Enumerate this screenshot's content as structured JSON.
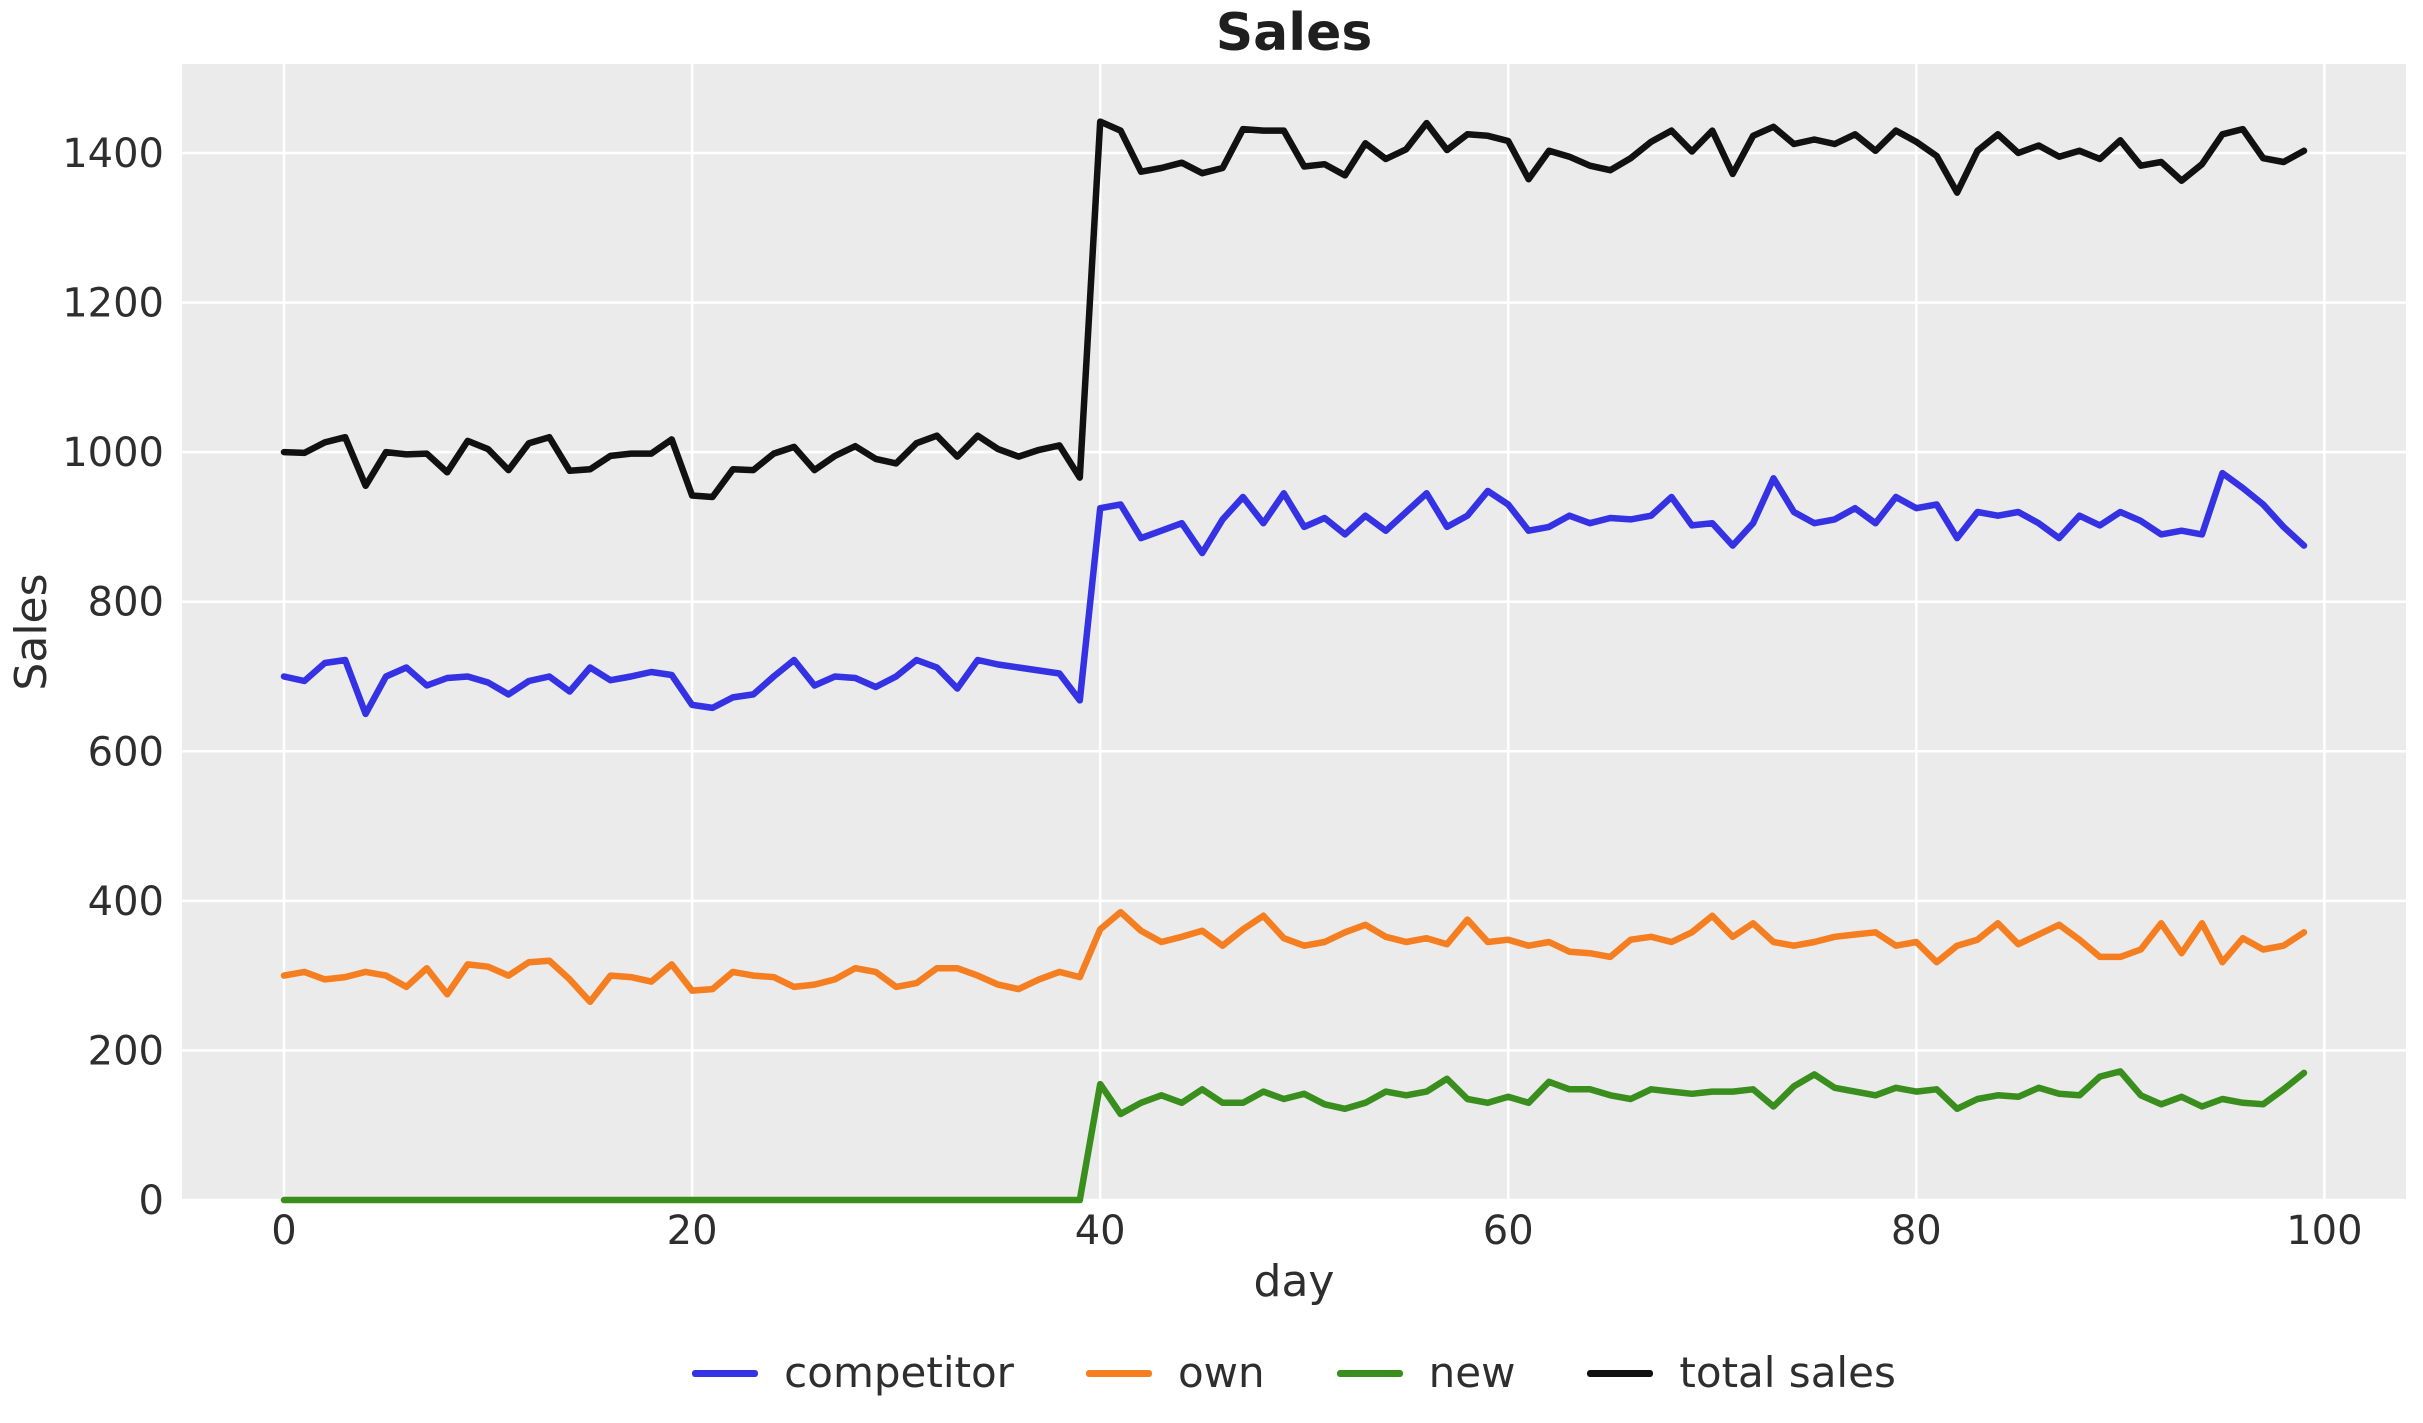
{
  "figure": {
    "background_color": "#ffffff",
    "plot_background_color": "#ebebeb",
    "grid_color": "#ffffff",
    "text_color": "#2e2e2e",
    "title_color": "#1f1f1f"
  },
  "chart_data": {
    "type": "line",
    "title": "Sales",
    "xlabel": "day",
    "ylabel": "Sales",
    "grid": true,
    "legend_position": "bottom",
    "xlim": [
      -5,
      104
    ],
    "ylim": [
      0,
      1519
    ],
    "xticks": [
      0,
      20,
      40,
      60,
      80,
      100
    ],
    "yticks": [
      0,
      200,
      400,
      600,
      800,
      1000,
      1200,
      1400
    ],
    "x": [
      0,
      1,
      2,
      3,
      4,
      5,
      6,
      7,
      8,
      9,
      10,
      11,
      12,
      13,
      14,
      15,
      16,
      17,
      18,
      19,
      20,
      21,
      22,
      23,
      24,
      25,
      26,
      27,
      28,
      29,
      30,
      31,
      32,
      33,
      34,
      35,
      36,
      37,
      38,
      39,
      40,
      41,
      42,
      43,
      44,
      45,
      46,
      47,
      48,
      49,
      50,
      51,
      52,
      53,
      54,
      55,
      56,
      57,
      58,
      59,
      60,
      61,
      62,
      63,
      64,
      65,
      66,
      67,
      68,
      69,
      70,
      71,
      72,
      73,
      74,
      75,
      76,
      77,
      78,
      79,
      80,
      81,
      82,
      83,
      84,
      85,
      86,
      87,
      88,
      89,
      90,
      91,
      92,
      93,
      94,
      95,
      96,
      97,
      98,
      99
    ],
    "series": [
      {
        "name": "competitor",
        "color": "#3532e3",
        "values": [
          700,
          694,
          718,
          722,
          650,
          700,
          712,
          688,
          698,
          700,
          692,
          676,
          694,
          700,
          680,
          712,
          695,
          700,
          706,
          702,
          662,
          658,
          672,
          676,
          700,
          722,
          688,
          700,
          698,
          686,
          700,
          722,
          712,
          684,
          722,
          716,
          712,
          708,
          704,
          668,
          925,
          930,
          885,
          895,
          905,
          865,
          910,
          940,
          905,
          945,
          900,
          912,
          890,
          915,
          895,
          920,
          945,
          900,
          915,
          948,
          930,
          895,
          900,
          915,
          905,
          912,
          910,
          915,
          940,
          902,
          905,
          875,
          905,
          965,
          920,
          905,
          910,
          925,
          905,
          940,
          925,
          930,
          885,
          920,
          915,
          920,
          905,
          885,
          915,
          902,
          920,
          908,
          890,
          895,
          890,
          972,
          952,
          930,
          900,
          875
        ]
      },
      {
        "name": "own",
        "color": "#f57e20",
        "values": [
          300,
          305,
          295,
          298,
          305,
          300,
          285,
          310,
          275,
          315,
          312,
          300,
          318,
          320,
          295,
          265,
          300,
          298,
          292,
          315,
          280,
          282,
          305,
          300,
          298,
          285,
          288,
          295,
          310,
          305,
          285,
          290,
          310,
          310,
          300,
          288,
          282,
          295,
          305,
          298,
          362,
          385,
          360,
          345,
          352,
          360,
          340,
          362,
          380,
          350,
          340,
          345,
          358,
          368,
          352,
          345,
          350,
          342,
          375,
          345,
          348,
          340,
          345,
          332,
          330,
          325,
          348,
          352,
          345,
          358,
          380,
          352,
          370,
          345,
          340,
          345,
          352,
          355,
          358,
          340,
          345,
          318,
          340,
          348,
          370,
          342,
          355,
          368,
          348,
          325,
          325,
          335,
          370,
          330,
          370,
          318,
          350,
          335,
          340,
          358
        ]
      },
      {
        "name": "new",
        "color": "#3a8e1d",
        "values": [
          0,
          0,
          0,
          0,
          0,
          0,
          0,
          0,
          0,
          0,
          0,
          0,
          0,
          0,
          0,
          0,
          0,
          0,
          0,
          0,
          0,
          0,
          0,
          0,
          0,
          0,
          0,
          0,
          0,
          0,
          0,
          0,
          0,
          0,
          0,
          0,
          0,
          0,
          0,
          0,
          155,
          115,
          130,
          140,
          130,
          148,
          130,
          130,
          145,
          135,
          142,
          128,
          122,
          130,
          145,
          140,
          145,
          162,
          135,
          130,
          138,
          130,
          158,
          148,
          148,
          140,
          135,
          148,
          145,
          142,
          145,
          145,
          148,
          125,
          152,
          168,
          150,
          145,
          140,
          150,
          145,
          148,
          122,
          135,
          140,
          138,
          150,
          142,
          140,
          165,
          172,
          140,
          128,
          138,
          125,
          135,
          130,
          128,
          148,
          170
        ]
      },
      {
        "name": "total sales",
        "color": "#111111",
        "values": [
          1000,
          999,
          1013,
          1020,
          955,
          1000,
          997,
          998,
          973,
          1015,
          1004,
          976,
          1012,
          1020,
          975,
          977,
          995,
          998,
          998,
          1017,
          942,
          940,
          977,
          976,
          998,
          1007,
          976,
          995,
          1008,
          991,
          985,
          1012,
          1022,
          994,
          1022,
          1004,
          994,
          1003,
          1009,
          966,
          1442,
          1430,
          1375,
          1380,
          1387,
          1373,
          1380,
          1432,
          1430,
          1430,
          1382,
          1385,
          1370,
          1413,
          1392,
          1405,
          1440,
          1404,
          1425,
          1423,
          1416,
          1365,
          1403,
          1395,
          1383,
          1377,
          1393,
          1415,
          1430,
          1402,
          1430,
          1372,
          1423,
          1435,
          1412,
          1418,
          1412,
          1425,
          1403,
          1430,
          1415,
          1396,
          1347,
          1403,
          1425,
          1400,
          1410,
          1395,
          1403,
          1392,
          1417,
          1383,
          1388,
          1363,
          1385,
          1425,
          1432,
          1393,
          1388,
          1403
        ]
      }
    ]
  },
  "legend": {
    "entries": [
      "competitor",
      "own",
      "new",
      "total sales"
    ]
  }
}
